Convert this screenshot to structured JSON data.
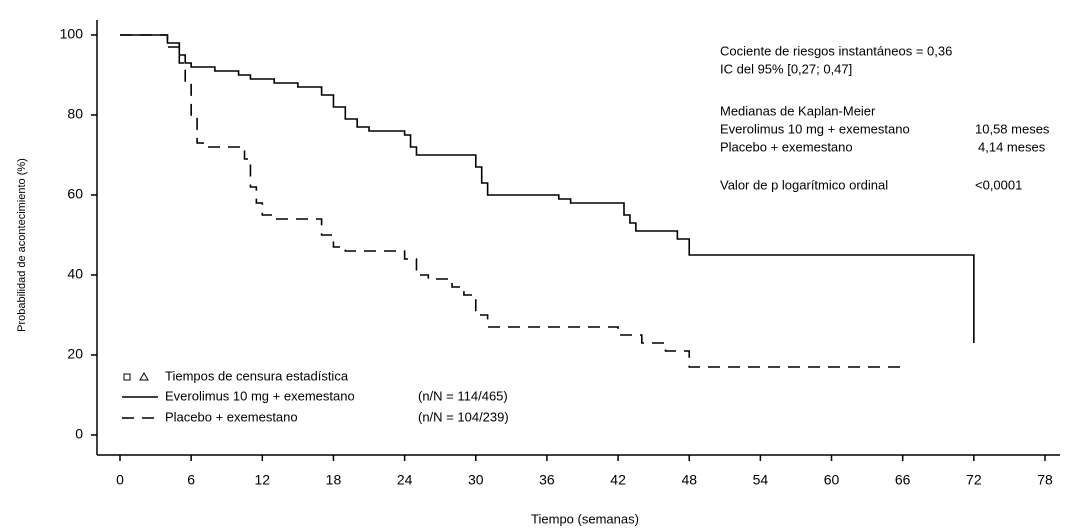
{
  "chart_data": {
    "type": "step",
    "xlabel": "Tiempo (semanas)",
    "ylabel": "Probabilidad de acontecimiento (%)",
    "xlim": [
      0,
      78
    ],
    "xticks": [
      0,
      6,
      12,
      18,
      24,
      30,
      36,
      42,
      48,
      54,
      60,
      66,
      72,
      78
    ],
    "ylim": [
      0,
      100
    ],
    "yticks": [
      0,
      20,
      40,
      60,
      80,
      100
    ],
    "legend": "lower left",
    "legend_title": "Tiempos de censura estadística",
    "series": [
      {
        "name": "Everolimus 10 mg + exemestano",
        "n_label": "(n/N = 114/465)",
        "color": "#000000",
        "line_style": "solid",
        "x": [
          0,
          3,
          4,
          5,
          5.5,
          6,
          8,
          10,
          11,
          13,
          15,
          17,
          18,
          19,
          20,
          21,
          24,
          24.5,
          25,
          29,
          30,
          30.5,
          31,
          35,
          37,
          38,
          42,
          42.5,
          43,
          43.5,
          46,
          47,
          48,
          72,
          72
        ],
        "values": [
          100,
          100,
          98,
          95,
          93,
          92,
          91,
          90,
          89,
          88,
          87,
          85,
          82,
          79,
          77,
          76,
          75,
          72,
          70,
          70,
          67,
          63,
          60,
          60,
          59,
          58,
          58,
          55,
          53,
          51,
          51,
          49,
          45,
          45,
          23
        ]
      },
      {
        "name": "Placebo + exemestano",
        "n_label": "(n/N = 104/239)",
        "color": "#000000",
        "line_style": "dashed",
        "x": [
          0,
          3.5,
          4,
          5,
          5.5,
          6,
          6.5,
          7,
          10,
          10.5,
          11,
          11.5,
          12,
          13,
          16,
          17,
          18,
          19,
          23,
          24,
          25,
          26,
          28,
          29,
          30,
          31,
          34,
          41,
          42,
          44,
          46,
          47,
          48,
          66
        ],
        "values": [
          100,
          100,
          97,
          93,
          88,
          80,
          73,
          72,
          72,
          69,
          62,
          58,
          55,
          54,
          54,
          50,
          47,
          46,
          46,
          44,
          40,
          39,
          37,
          35,
          30,
          27,
          27,
          27,
          25,
          23,
          21,
          21,
          17,
          17
        ]
      }
    ],
    "annotations": {
      "hazard_ratio": "Cociente de riesgos instantáneos = 0,36",
      "ci": "IC del 95% [0,27; 0,47]",
      "median_title": "Medianas de Kaplan-Meier",
      "median_1_label": "Everolimus 10 mg + exemestano",
      "median_1_value": "10,58 meses",
      "median_2_label": "Placebo + exemestano",
      "median_2_value": "4,14 meses",
      "p_label": "Valor de p logarítmico ordinal",
      "p_value": "<0,0001"
    }
  }
}
